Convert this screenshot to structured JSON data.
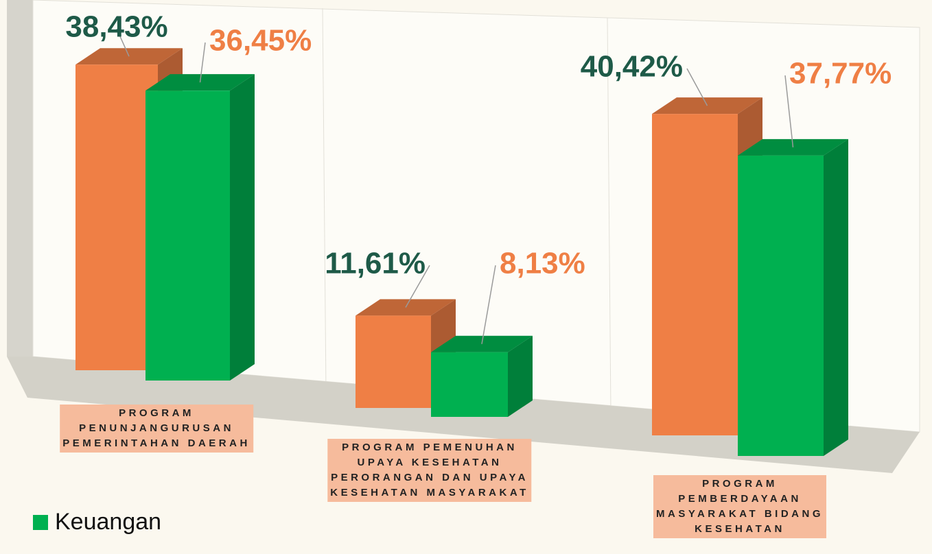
{
  "chart_data": {
    "type": "bar3d",
    "categories": [
      [
        "PROGRAM",
        "PENUNJANGURUSAN",
        "PEMERINTAHAN DAERAH"
      ],
      [
        "PROGRAM PEMENUHAN",
        "UPAYA KESEHATAN",
        "PERORANGAN DAN UPAYA",
        "KESEHATAN MASYARAKAT"
      ],
      [
        "PROGRAM",
        "PEMBERDAYAAN",
        "MASYARAKAT BIDANG",
        "KESEHATAN"
      ]
    ],
    "series": [
      {
        "color": "#ef7f45",
        "values": [
          38.43,
          11.61,
          40.42
        ],
        "value_labels": [
          "38,43%",
          "11,61%",
          "40,42%"
        ]
      },
      {
        "name": "Keuangan",
        "color": "#00b050",
        "values": [
          36.45,
          8.13,
          37.77
        ],
        "value_labels": [
          "36,45%",
          "8,13%",
          "37,77%"
        ]
      }
    ]
  }
}
